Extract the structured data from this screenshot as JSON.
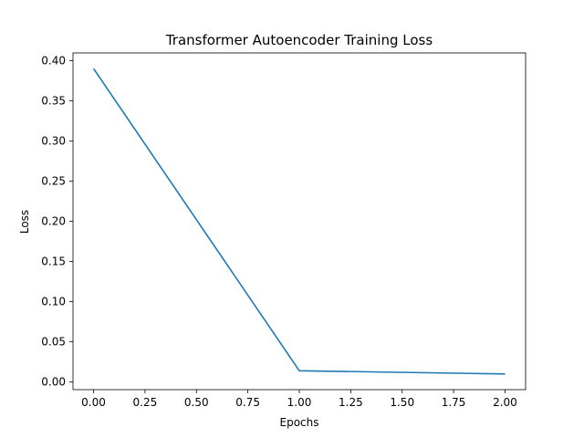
{
  "chart_data": {
    "type": "line",
    "title": "Transformer Autoencoder Training Loss",
    "xlabel": "Epochs",
    "ylabel": "Loss",
    "xlim": [
      -0.1,
      2.1
    ],
    "ylim": [
      -0.0095,
      0.4095
    ],
    "xticks": [
      0.0,
      0.25,
      0.5,
      0.75,
      1.0,
      1.25,
      1.5,
      1.75,
      2.0
    ],
    "xtick_labels": [
      "0.00",
      "0.25",
      "0.50",
      "0.75",
      "1.00",
      "1.25",
      "1.50",
      "1.75",
      "2.00"
    ],
    "yticks": [
      0.0,
      0.05,
      0.1,
      0.15,
      0.2,
      0.25,
      0.3,
      0.35,
      0.4
    ],
    "ytick_labels": [
      "0.00",
      "0.05",
      "0.10",
      "0.15",
      "0.20",
      "0.25",
      "0.30",
      "0.35",
      "0.40"
    ],
    "grid": false,
    "series": [
      {
        "color": "#1f77b4",
        "x": [
          0,
          1,
          2
        ],
        "y": [
          0.39,
          0.014,
          0.01
        ]
      }
    ]
  }
}
